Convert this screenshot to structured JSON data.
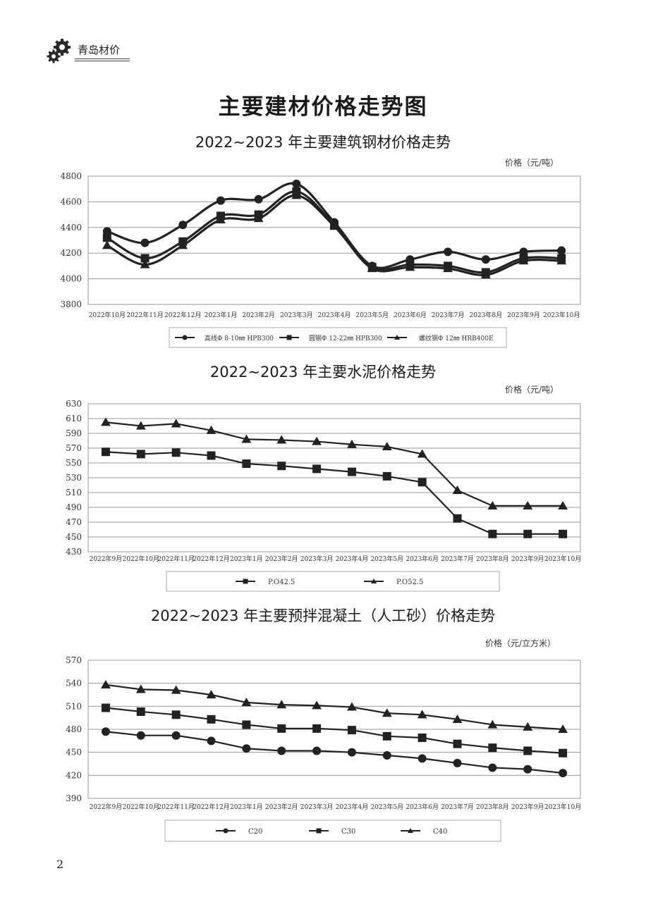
{
  "header": {
    "brand": "青岛材价",
    "icon": "gear-icon"
  },
  "page": {
    "title": "主要建材价格走势图",
    "number": "2"
  },
  "charts": [
    {
      "title": "2022~2023 年主要建筑钢材价格走势",
      "unit": "价格（元/吨）",
      "chart_data": {
        "type": "line",
        "categories": [
          "2022年10月",
          "2022年11月",
          "2022年12月",
          "2023年1月",
          "2023年2月",
          "2023年3月",
          "2023年4月",
          "2023年5月",
          "2023年6月",
          "2023年7月",
          "2023年8月",
          "2023年9月",
          "2023年10月"
        ],
        "ylim": [
          3800,
          4800
        ],
        "yticks": [
          3800,
          4000,
          4200,
          4400,
          4600,
          4800
        ],
        "grid": true,
        "legend_position": "bottom",
        "series": [
          {
            "name": "高线Φ 8-10㎜ HPB300",
            "marker": "circle",
            "values": [
              4370,
              4280,
              4420,
              4610,
              4620,
              4740,
              4440,
              4100,
              4150,
              4210,
              4150,
              4210,
              4220
            ]
          },
          {
            "name": "圆钢Φ 12-22㎜ HPB300",
            "marker": "square",
            "values": [
              4320,
              4160,
              4290,
              4490,
              4500,
              4680,
              4420,
              4090,
              4110,
              4100,
              4050,
              4160,
              4160
            ]
          },
          {
            "name": "螺纹钢Φ 12㎜ HRB400E",
            "marker": "triangle",
            "values": [
              4260,
              4110,
              4260,
              4460,
              4470,
              4650,
              4410,
              4080,
              4090,
              4080,
              4030,
              4140,
              4140
            ]
          }
        ]
      }
    },
    {
      "title": "2022~2023 年主要水泥价格走势",
      "unit": "价格（元/吨）",
      "chart_data": {
        "type": "line",
        "categories": [
          "2022年9月",
          "2022年10月",
          "2022年11月",
          "2022年12月",
          "2023年1月",
          "2023年2月",
          "2023年3月",
          "2023年4月",
          "2023年5月",
          "2023年6月",
          "2023年7月",
          "2023年8月",
          "2023年9月",
          "2023年10月"
        ],
        "ylim": [
          430,
          630
        ],
        "yticks": [
          430,
          450,
          470,
          490,
          510,
          530,
          550,
          570,
          590,
          610,
          630
        ],
        "grid": true,
        "legend_position": "bottom",
        "series": [
          {
            "name": "P.O42.5",
            "marker": "square",
            "values": [
              565,
              562,
              564,
              560,
              549,
              546,
              542,
              538,
              532,
              524,
              475,
              454,
              454,
              454
            ]
          },
          {
            "name": "P.O52.5",
            "marker": "triangle",
            "values": [
              605,
              600,
              603,
              594,
              582,
              581,
              579,
              575,
              572,
              562,
              513,
              492,
              492,
              492
            ]
          }
        ]
      }
    },
    {
      "title": "2022~2023 年主要预拌混凝土（人工砂）价格走势",
      "unit": "价格（元/立方米）",
      "chart_data": {
        "type": "line",
        "categories": [
          "2022年9月",
          "2022年10月",
          "2022年11月",
          "2022年12月",
          "2023年1月",
          "2023年2月",
          "2023年3月",
          "2023年4月",
          "2023年5月",
          "2023年6月",
          "2023年7月",
          "2023年8月",
          "2023年9月",
          "2023年10月"
        ],
        "ylim": [
          390,
          570
        ],
        "yticks": [
          390,
          420,
          450,
          480,
          510,
          540,
          570
        ],
        "grid": true,
        "legend_position": "bottom",
        "series": [
          {
            "name": "C20",
            "marker": "circle",
            "values": [
              477,
              472,
              472,
              465,
              455,
              452,
              452,
              450,
              446,
              442,
              436,
              430,
              428,
              423
            ]
          },
          {
            "name": "C30",
            "marker": "square",
            "values": [
              508,
              503,
              499,
              493,
              486,
              481,
              481,
              479,
              471,
              469,
              461,
              456,
              452,
              449
            ]
          },
          {
            "name": "C40",
            "marker": "triangle",
            "values": [
              538,
              532,
              531,
              525,
              515,
              512,
              511,
              509,
              501,
              499,
              493,
              486,
              483,
              480
            ]
          }
        ]
      }
    }
  ]
}
